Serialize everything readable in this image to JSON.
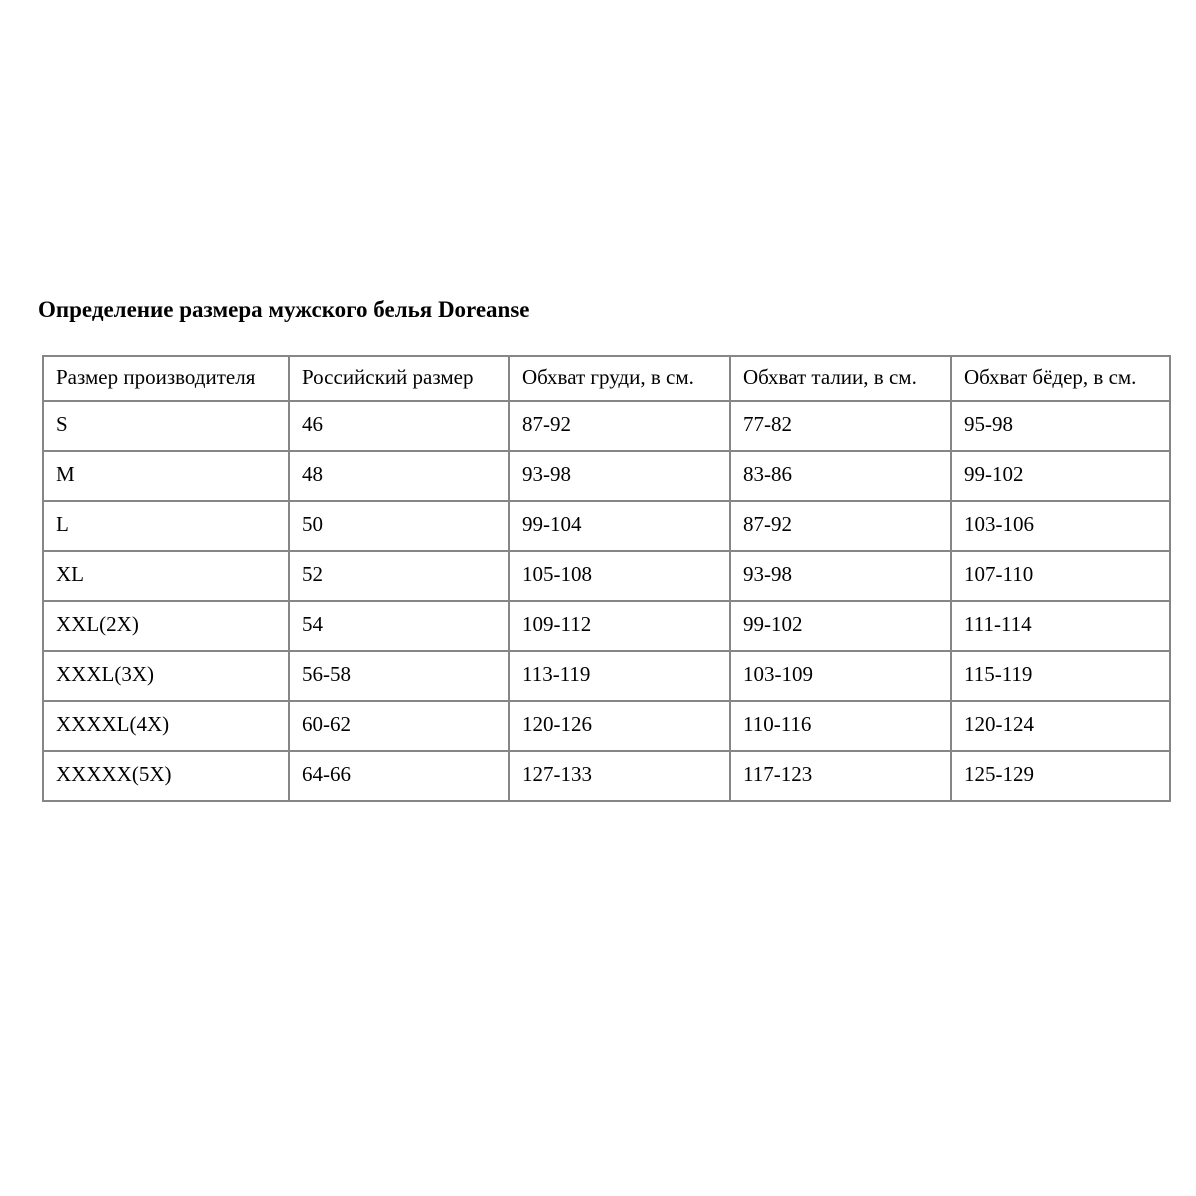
{
  "page": {
    "title": "Определение размера мужского белья Doreanse"
  },
  "table": {
    "columns": [
      "Размер производителя",
      "Российский размер",
      "Обхват груди, в см.",
      "Обхват талии, в см.",
      "Обхват бёдер, в см."
    ],
    "rows": [
      [
        "S",
        "46",
        "87-92",
        "77-82",
        "95-98"
      ],
      [
        "M",
        "48",
        "93-98",
        "83-86",
        "99-102"
      ],
      [
        "L",
        "50",
        "99-104",
        "87-92",
        "103-106"
      ],
      [
        "XL",
        "52",
        "105-108",
        "93-98",
        "107-110"
      ],
      [
        "XXL(2X)",
        "54",
        "109-112",
        "99-102",
        "111-114"
      ],
      [
        "XXXL(3X)",
        "56-58",
        "113-119",
        "103-109",
        "115-119"
      ],
      [
        "XXXXL(4X)",
        "60-62",
        "120-126",
        "110-116",
        "120-124"
      ],
      [
        "XXXXX(5X)",
        "64-66",
        "127-133",
        "117-123",
        "125-129"
      ]
    ],
    "border_color": "#868686",
    "text_color": "#000000",
    "background_color": "#ffffff"
  }
}
